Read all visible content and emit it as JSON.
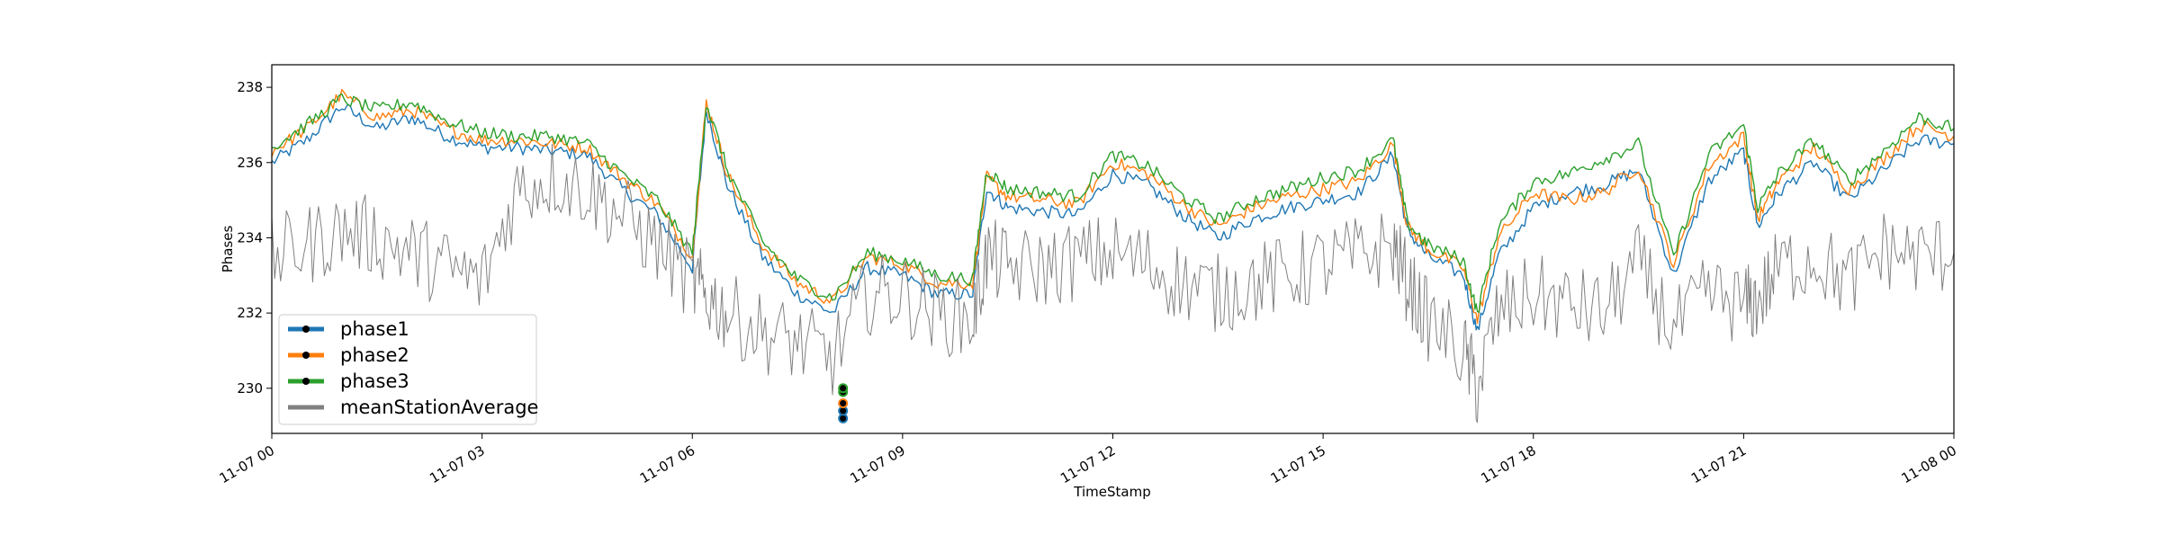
{
  "chart_data": {
    "type": "line",
    "xlabel": "TimeStamp",
    "ylabel": "Phases",
    "xlim": [
      "2023-11-07T00:00",
      "2023-11-08T00:00"
    ],
    "ylim": [
      228.8,
      238.6
    ],
    "grid": false,
    "legend_position": "lower-left",
    "x_ticks": [
      {
        "value": 0,
        "label": "11-07 00"
      },
      {
        "value": 3,
        "label": "11-07 03"
      },
      {
        "value": 6,
        "label": "11-07 06"
      },
      {
        "value": 9,
        "label": "11-07 09"
      },
      {
        "value": 12,
        "label": "11-07 12"
      },
      {
        "value": 15,
        "label": "11-07 15"
      },
      {
        "value": 18,
        "label": "11-07 18"
      },
      {
        "value": 21,
        "label": "11-07 21"
      },
      {
        "value": 24,
        "label": "11-08 00"
      }
    ],
    "y_ticks": [
      230,
      232,
      234,
      236,
      238
    ],
    "x_hours": [
      0,
      0.5,
      1,
      1.5,
      2,
      2.5,
      3,
      3.5,
      4,
      4.5,
      5,
      5.5,
      6,
      6.2,
      6.5,
      7,
      7.5,
      8,
      8.5,
      9,
      9.5,
      10,
      10.2,
      10.5,
      11,
      11.5,
      12,
      12.5,
      13,
      13.5,
      14,
      14.5,
      15,
      15.5,
      16,
      16.2,
      16.5,
      17,
      17.2,
      17.5,
      18,
      18.5,
      19,
      19.5,
      20,
      20.5,
      21,
      21.2,
      21.5,
      22,
      22.5,
      23,
      23.5,
      24
    ],
    "series": [
      {
        "name": "phase1",
        "color": "#1f77b4",
        "values": [
          236.0,
          236.6,
          237.5,
          236.9,
          237.2,
          236.7,
          236.4,
          236.4,
          236.3,
          236.2,
          235.3,
          234.6,
          233.2,
          237.4,
          235.4,
          233.5,
          232.5,
          232.0,
          233.2,
          233.0,
          232.5,
          232.5,
          235.3,
          234.8,
          234.7,
          234.6,
          235.7,
          235.4,
          234.6,
          234.0,
          234.5,
          234.8,
          235.0,
          235.2,
          236.2,
          234.2,
          233.5,
          233.0,
          231.5,
          233.5,
          234.8,
          235.2,
          235.4,
          235.8,
          233.0,
          235.5,
          236.3,
          234.3,
          235.2,
          236.0,
          235.0,
          235.8,
          236.6,
          236.5
        ]
      },
      {
        "name": "phase2",
        "color": "#ff7f0e",
        "values": [
          236.3,
          236.9,
          237.8,
          237.2,
          237.4,
          236.9,
          236.6,
          236.6,
          236.5,
          236.4,
          235.6,
          234.9,
          233.5,
          237.6,
          235.7,
          233.8,
          232.8,
          232.3,
          233.5,
          233.3,
          232.8,
          232.8,
          235.6,
          235.1,
          235.0,
          234.9,
          236.0,
          235.7,
          234.9,
          234.3,
          234.8,
          235.1,
          235.3,
          235.5,
          236.5,
          234.3,
          233.7,
          233.2,
          231.8,
          234.0,
          235.2,
          235.0,
          235.2,
          235.9,
          233.3,
          235.9,
          236.7,
          234.5,
          235.5,
          236.4,
          235.3,
          236.1,
          237.0,
          236.7
        ]
      },
      {
        "name": "phase3",
        "color": "#2ca02c",
        "values": [
          236.4,
          237.0,
          237.7,
          237.4,
          237.6,
          237.1,
          236.8,
          236.7,
          236.7,
          236.5,
          235.7,
          235.0,
          233.6,
          237.6,
          235.8,
          233.9,
          232.9,
          232.4,
          233.6,
          233.4,
          233.0,
          232.9,
          235.8,
          235.3,
          235.2,
          235.1,
          236.2,
          235.9,
          235.1,
          234.5,
          235.0,
          235.3,
          235.6,
          235.8,
          236.6,
          234.4,
          233.8,
          233.4,
          232.0,
          234.3,
          235.5,
          235.7,
          236.1,
          236.5,
          233.5,
          236.2,
          237.0,
          234.8,
          235.7,
          236.6,
          235.5,
          236.3,
          237.2,
          236.9
        ]
      },
      {
        "name": "meanStationAverage",
        "color": "#808080",
        "values": [
          233.5,
          233.8,
          234.2,
          234.0,
          233.6,
          233.2,
          232.8,
          235.3,
          235.6,
          235.3,
          234.6,
          233.8,
          232.8,
          232.5,
          232.0,
          231.5,
          231.2,
          230.8,
          232.5,
          232.5,
          232.0,
          231.8,
          233.5,
          233.2,
          233.2,
          233.4,
          233.6,
          233.3,
          232.8,
          232.5,
          232.8,
          233.0,
          233.3,
          233.5,
          233.8,
          232.8,
          231.8,
          231.0,
          230.0,
          232.0,
          232.5,
          232.2,
          232.0,
          233.3,
          231.5,
          232.5,
          232.2,
          232.3,
          233.2,
          233.5,
          232.8,
          233.7,
          233.5,
          233.6
        ]
      }
    ],
    "markers": {
      "x_hour": 8.15,
      "points": [
        {
          "series": "phase1",
          "y": 229.2
        },
        {
          "series": "phase1",
          "y": 229.4
        },
        {
          "series": "phase2",
          "y": 229.6
        },
        {
          "series": "phase3",
          "y": 229.9
        },
        {
          "series": "phase3",
          "y": 230.0
        }
      ]
    }
  }
}
